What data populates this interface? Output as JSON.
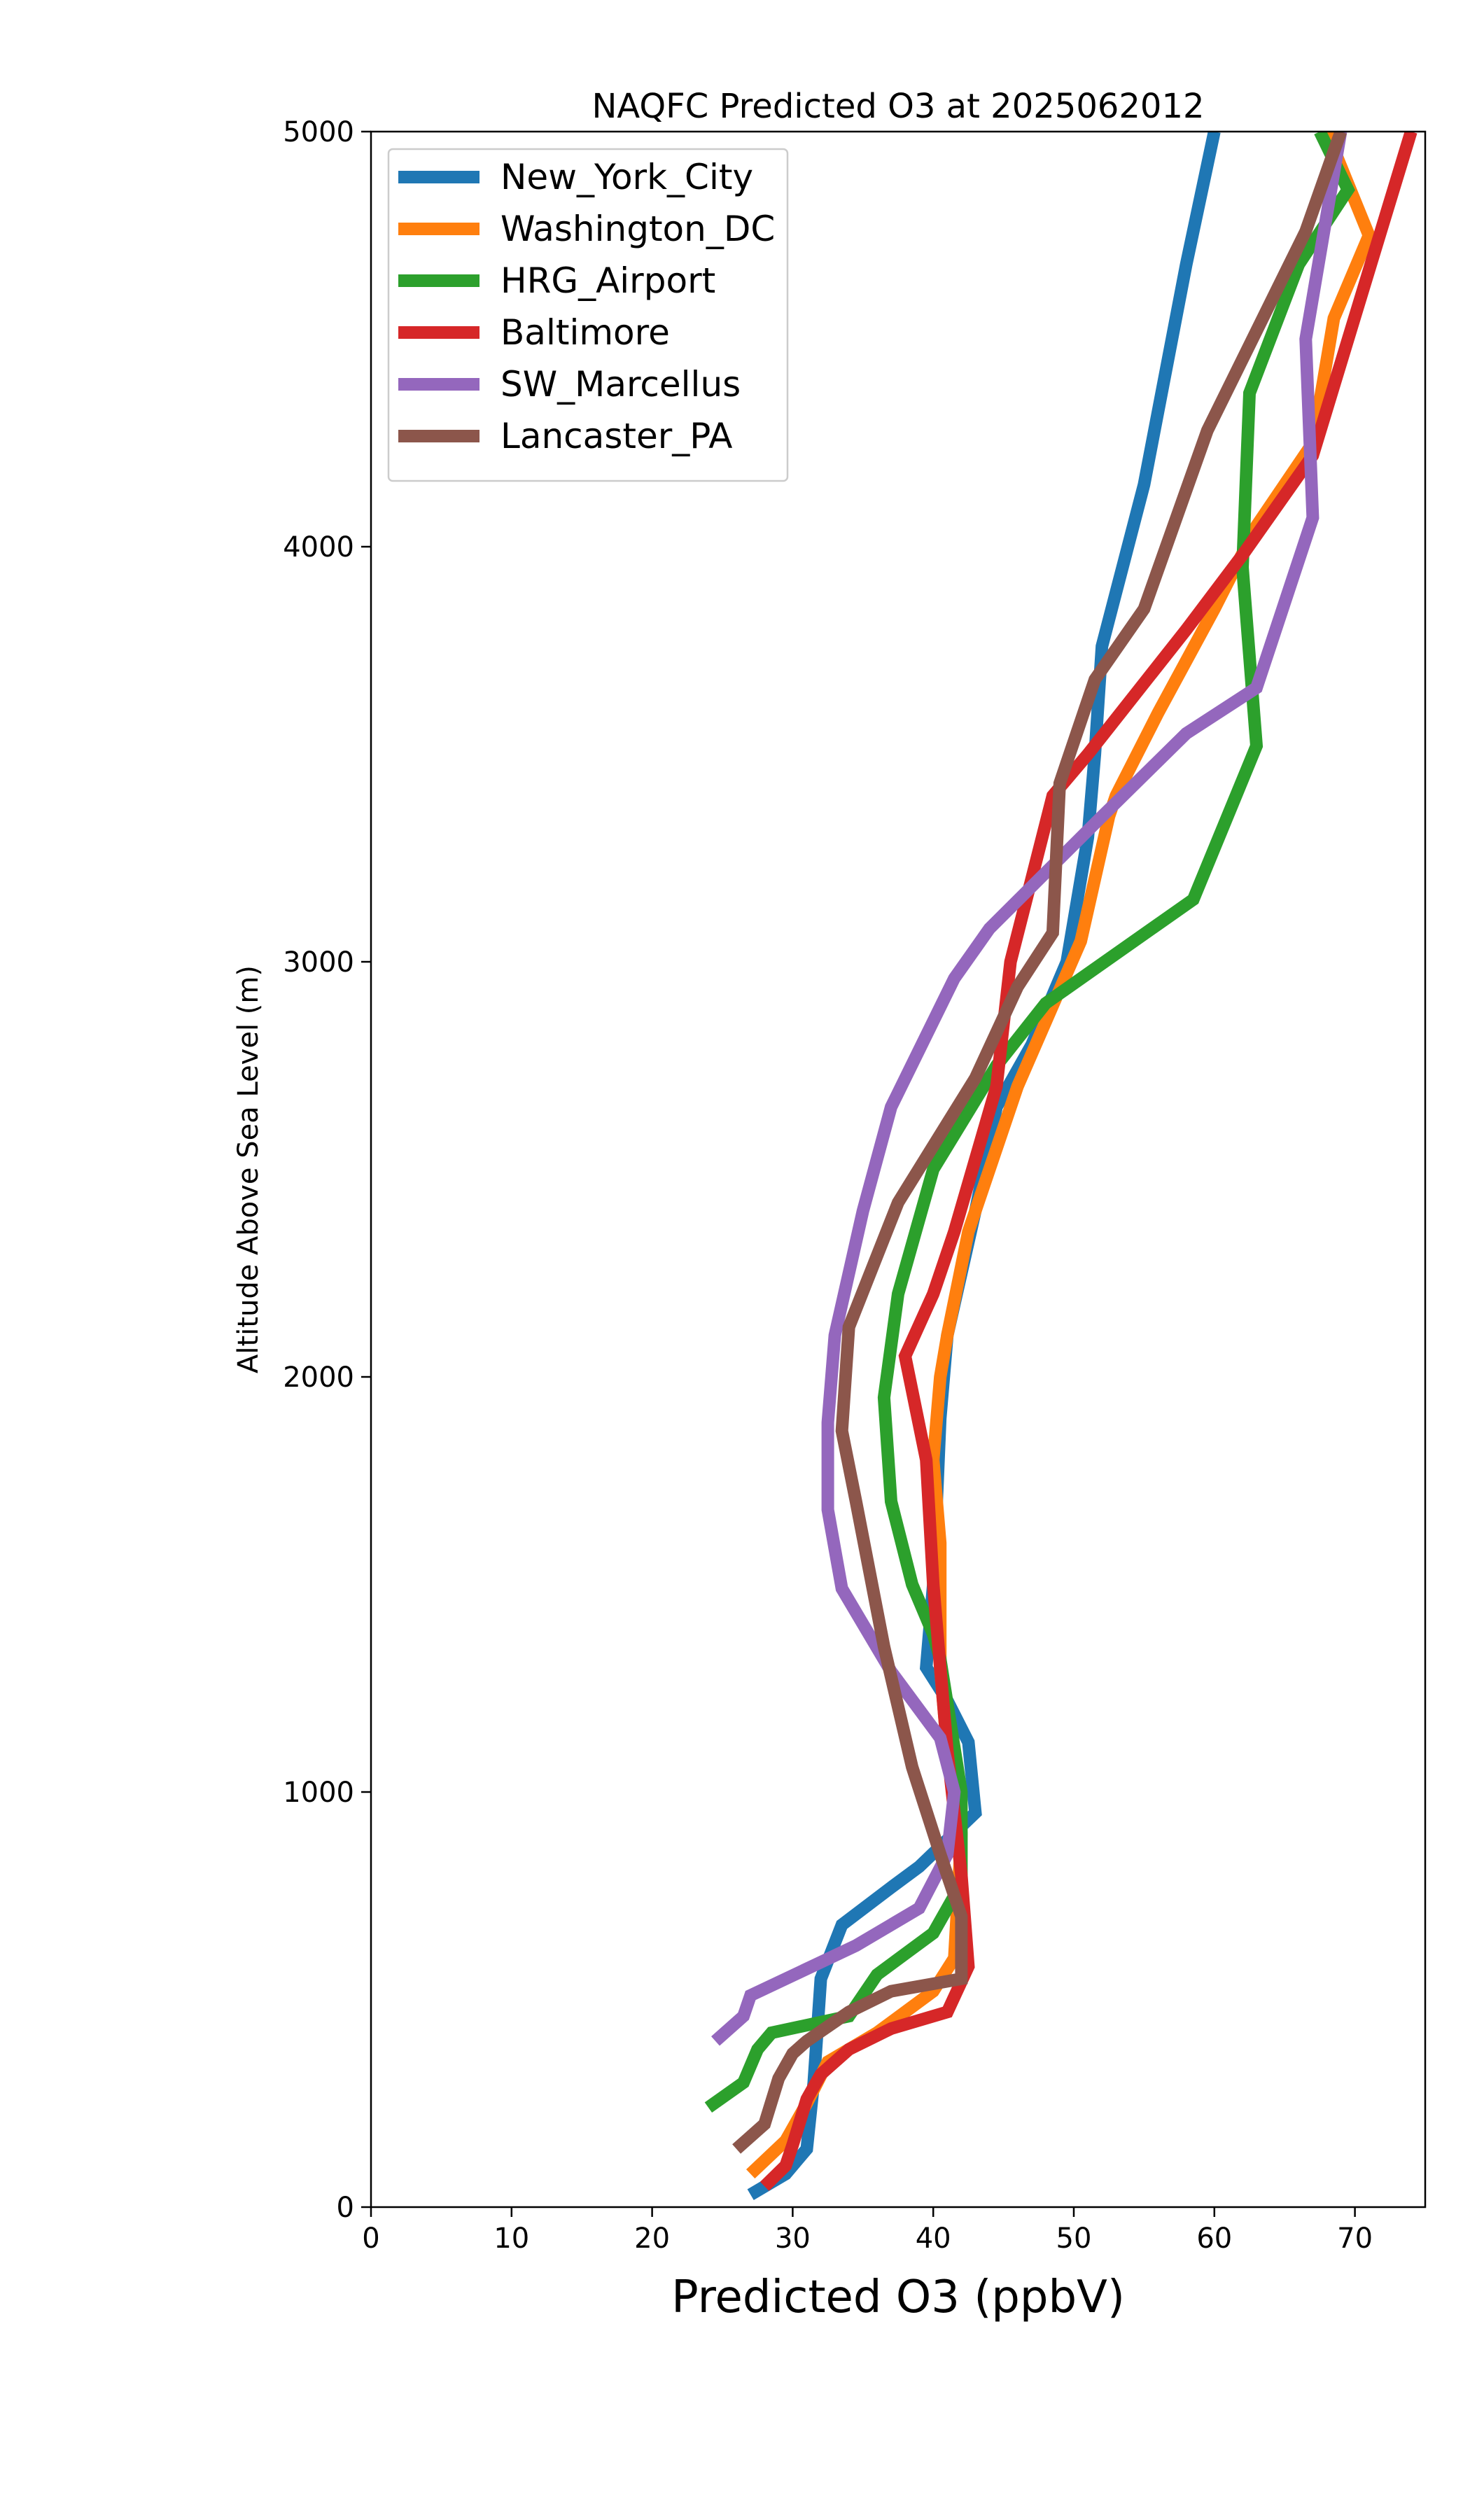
{
  "chart_data": {
    "type": "line",
    "title": "NAQFC Predicted O3 at 2025062012",
    "xlabel": "Predicted O3 (ppbV)",
    "ylabel": "Altitude Above Sea Level (m)",
    "xlim": [
      0,
      75
    ],
    "ylim": [
      0,
      5000
    ],
    "xticks": [
      0,
      10,
      20,
      30,
      40,
      50,
      60,
      70
    ],
    "yticks": [
      0,
      1000,
      2000,
      3000,
      4000,
      5000
    ],
    "grid": false,
    "legend_position": "upper-left",
    "series": [
      {
        "name": "New_York_City",
        "color": "#1f77b4",
        "points": [
          [
            27,
            30
          ],
          [
            29.5,
            80
          ],
          [
            31,
            140
          ],
          [
            31.5,
            300
          ],
          [
            32,
            550
          ],
          [
            33.5,
            680
          ],
          [
            37,
            770
          ],
          [
            39,
            820
          ],
          [
            43,
            950
          ],
          [
            42.5,
            1120
          ],
          [
            41,
            1220
          ],
          [
            39.5,
            1300
          ],
          [
            40,
            1500
          ],
          [
            40.5,
            1900
          ],
          [
            41,
            2100
          ],
          [
            43,
            2400
          ],
          [
            44.5,
            2650
          ],
          [
            47,
            2800
          ],
          [
            49.5,
            3000
          ],
          [
            51,
            3300
          ],
          [
            51.5,
            3500
          ],
          [
            52,
            3760
          ],
          [
            55,
            4150
          ],
          [
            58,
            4680
          ],
          [
            60,
            5000
          ]
        ]
      },
      {
        "name": "Washington_DC",
        "color": "#ff7f0e",
        "points": [
          [
            27,
            80
          ],
          [
            29.5,
            160
          ],
          [
            31,
            250
          ],
          [
            32.5,
            350
          ],
          [
            36,
            420
          ],
          [
            40,
            520
          ],
          [
            41.5,
            600
          ],
          [
            42,
            900
          ],
          [
            41,
            1100
          ],
          [
            40.5,
            1300
          ],
          [
            40.5,
            1600
          ],
          [
            40,
            1800
          ],
          [
            40.5,
            2000
          ],
          [
            41,
            2100
          ],
          [
            42.5,
            2350
          ],
          [
            46,
            2700
          ],
          [
            50.5,
            3050
          ],
          [
            52.5,
            3350
          ],
          [
            53,
            3400
          ],
          [
            56,
            3600
          ],
          [
            60,
            3850
          ],
          [
            63,
            4050
          ],
          [
            67,
            4250
          ],
          [
            68.5,
            4550
          ],
          [
            71,
            4750
          ],
          [
            68,
            5000
          ]
        ]
      },
      {
        "name": "HRG_Airport",
        "color": "#2ca02c",
        "points": [
          [
            24,
            240
          ],
          [
            26.5,
            300
          ],
          [
            27.5,
            380
          ],
          [
            28.5,
            420
          ],
          [
            34,
            460
          ],
          [
            36,
            560
          ],
          [
            40,
            660
          ],
          [
            42,
            780
          ],
          [
            42,
            1000
          ],
          [
            40.5,
            1320
          ],
          [
            40,
            1380
          ],
          [
            38.5,
            1500
          ],
          [
            37,
            1700
          ],
          [
            36.5,
            1950
          ],
          [
            37.5,
            2200
          ],
          [
            40,
            2500
          ],
          [
            44.5,
            2750
          ],
          [
            48,
            2900
          ],
          [
            58.5,
            3150
          ],
          [
            63,
            3520
          ],
          [
            62,
            3950
          ],
          [
            62.5,
            4370
          ],
          [
            66,
            4680
          ],
          [
            69.5,
            4860
          ],
          [
            67.5,
            5000
          ]
        ]
      },
      {
        "name": "Baltimore",
        "color": "#d62728",
        "points": [
          [
            28,
            50
          ],
          [
            29.5,
            100
          ],
          [
            30,
            150
          ],
          [
            31,
            260
          ],
          [
            32,
            320
          ],
          [
            34,
            380
          ],
          [
            37,
            430
          ],
          [
            41,
            470
          ],
          [
            42.5,
            580
          ],
          [
            42,
            800
          ],
          [
            41,
            1100
          ],
          [
            40.5,
            1300
          ],
          [
            40,
            1500
          ],
          [
            39.5,
            1800
          ],
          [
            38,
            2050
          ],
          [
            40,
            2200
          ],
          [
            41.5,
            2350
          ],
          [
            44.5,
            2700
          ],
          [
            45.5,
            3000
          ],
          [
            48.5,
            3400
          ],
          [
            51,
            3500
          ],
          [
            58,
            3800
          ],
          [
            62,
            3980
          ],
          [
            67,
            4220
          ],
          [
            74,
            5000
          ]
        ]
      },
      {
        "name": "SW_Marcellus",
        "color": "#9467bd",
        "points": [
          [
            24.5,
            400
          ],
          [
            26.5,
            460
          ],
          [
            27,
            510
          ],
          [
            34.5,
            630
          ],
          [
            39,
            720
          ],
          [
            41,
            850
          ],
          [
            41.5,
            1000
          ],
          [
            40.5,
            1130
          ],
          [
            37,
            1290
          ],
          [
            33.5,
            1490
          ],
          [
            32.5,
            1680
          ],
          [
            32.5,
            1890
          ],
          [
            33,
            2100
          ],
          [
            35,
            2400
          ],
          [
            37,
            2650
          ],
          [
            41.5,
            2960
          ],
          [
            44,
            3080
          ],
          [
            52,
            3350
          ],
          [
            58,
            3550
          ],
          [
            63,
            3660
          ],
          [
            67,
            4070
          ],
          [
            66.5,
            4500
          ],
          [
            69,
            5000
          ]
        ]
      },
      {
        "name": "Lancaster_PA",
        "color": "#8c564b",
        "points": [
          [
            26,
            140
          ],
          [
            28,
            200
          ],
          [
            29,
            310
          ],
          [
            30,
            370
          ],
          [
            31,
            400
          ],
          [
            34,
            470
          ],
          [
            37,
            520
          ],
          [
            42,
            550
          ],
          [
            42,
            700
          ],
          [
            40.5,
            850
          ],
          [
            38.5,
            1060
          ],
          [
            36.5,
            1350
          ],
          [
            34.5,
            1700
          ],
          [
            33.5,
            1870
          ],
          [
            34,
            2120
          ],
          [
            37.5,
            2420
          ],
          [
            43,
            2720
          ],
          [
            46,
            2940
          ],
          [
            48.5,
            3070
          ],
          [
            49,
            3430
          ],
          [
            51.5,
            3680
          ],
          [
            55,
            3850
          ],
          [
            59.5,
            4280
          ],
          [
            66.5,
            4760
          ],
          [
            69,
            5000
          ]
        ]
      }
    ]
  }
}
